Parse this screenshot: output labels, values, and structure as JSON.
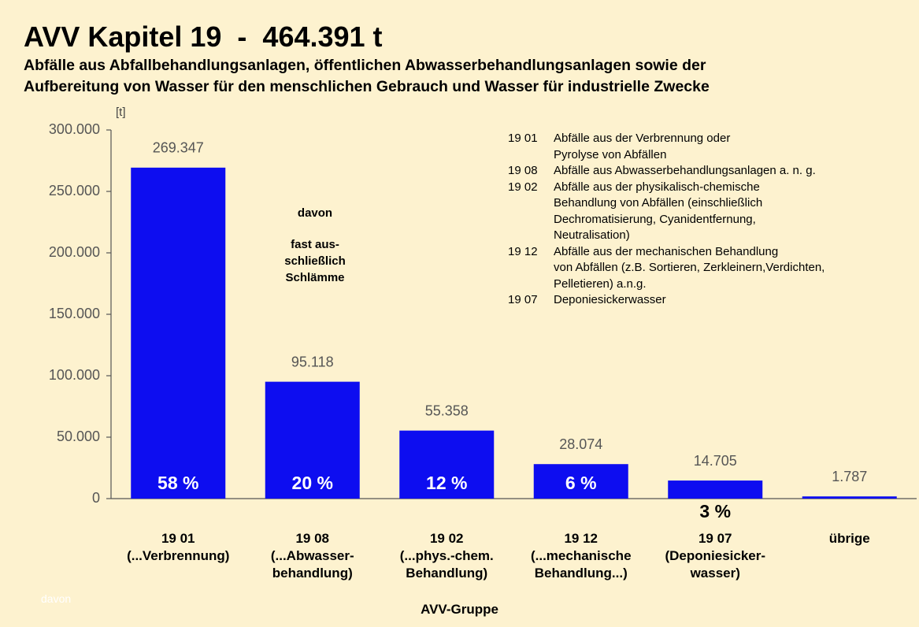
{
  "chart_data": {
    "type": "bar",
    "title": "AVV Kapitel 19  -  464.391 t",
    "subtitle": [
      "Abfälle aus Abfallbehandlungsanlagen, öffentlichen Abwasserbehandlungsanlagen sowie der",
      "Aufbereitung von Wasser für den menschlichen Gebrauch und Wasser für industrielle Zwecke"
    ],
    "y_unit": "[t]",
    "xlabel": "AVV-Gruppe",
    "categories": [
      "19 01\n(...Verbrennung)",
      "19 08\n(...Abwasser-\nbehandlung)",
      "19 02\n(...phys.-chem.\nBehandlung)",
      "19 12\n(...mechanische\nBehandlung...)",
      "19 07\n(Deponiesicker-\nwasser)",
      "übrige"
    ],
    "values": [
      269347,
      95118,
      55358,
      28074,
      14705,
      1787
    ],
    "value_labels": [
      "269.347",
      "95.118",
      "55.358",
      "28.074",
      "14.705",
      "1.787"
    ],
    "percent_labels": [
      "58 %",
      "20 %",
      "12 %",
      "6 %",
      "3 %",
      null
    ],
    "color": "#0d0df0",
    "ylim": [
      0,
      300000
    ],
    "yticks": [
      0,
      {
        "value": 50000,
        "label": "50.000"
      },
      {
        "value": 100000,
        "label": "100.000"
      },
      {
        "value": 150000,
        "label": "150.000"
      },
      {
        "value": 200000,
        "label": "200.000"
      },
      {
        "value": 250000,
        "label": "250.000"
      },
      {
        "value": 300000,
        "label": "300.000"
      }
    ],
    "grid": false,
    "annotations": [
      "davon",
      "fast aus-\nschließlich\nSchlämme",
      "davon"
    ],
    "notes": [
      {
        "code": "19 01",
        "text": "Abfälle aus der Verbrennung oder\nPyrolyse von Abfällen"
      },
      {
        "code": "19 08",
        "text": "Abfälle aus Abwasserbehandlungsanlagen a. n. g."
      },
      {
        "code": "19 02",
        "text": "Abfälle aus der physikalisch-chemische\nBehandlung von Abfällen (einschließlich\nDechromatisierung, Cyanidentfernung,\nNeutralisation)"
      },
      {
        "code": "19 12",
        "text": "Abfälle aus der mechanischen Behandlung\nvon Abfällen (z.B. Sortieren, Zerkleinern,Verdichten,\nPelletieren) a.n.g."
      },
      {
        "code": "19 07",
        "text": "Deponiesickerwasser"
      }
    ]
  }
}
